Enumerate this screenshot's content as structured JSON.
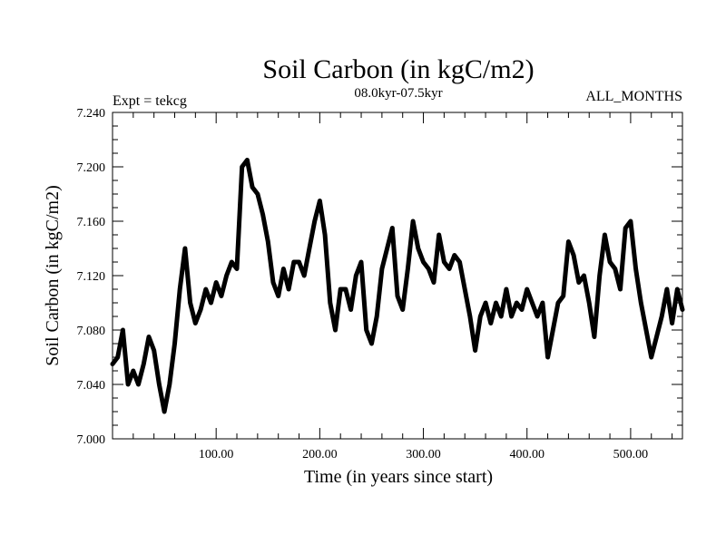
{
  "chart_data": {
    "type": "line",
    "title": "Soil Carbon (in kgC/m2)",
    "subtitle": "08.0kyr-07.5kyr",
    "left_label": "Expt = tekcg",
    "right_label": "ALL_MONTHS",
    "xlabel": "Time (in years since start)",
    "ylabel": "Soil Carbon (in kgC/m2)",
    "xlim": [
      0,
      550
    ],
    "ylim": [
      7.0,
      7.24
    ],
    "x_ticks": [
      100,
      200,
      300,
      400,
      500
    ],
    "x_tick_labels": [
      "100.00",
      "200.00",
      "300.00",
      "400.00",
      "500.00"
    ],
    "y_ticks": [
      7.0,
      7.04,
      7.08,
      7.12,
      7.16,
      7.2,
      7.24
    ],
    "y_tick_labels": [
      "7.000",
      "7.040",
      "7.080",
      "7.120",
      "7.160",
      "7.200",
      "7.240"
    ],
    "series": [
      {
        "name": "Soil Carbon",
        "color": "#000000",
        "x": [
          0,
          5,
          10,
          15,
          20,
          25,
          30,
          35,
          40,
          45,
          50,
          55,
          60,
          65,
          70,
          75,
          80,
          85,
          90,
          95,
          100,
          105,
          110,
          115,
          120,
          125,
          130,
          135,
          140,
          145,
          150,
          155,
          160,
          165,
          170,
          175,
          180,
          185,
          190,
          195,
          200,
          205,
          210,
          215,
          220,
          225,
          230,
          235,
          240,
          245,
          250,
          255,
          260,
          265,
          270,
          275,
          280,
          285,
          290,
          295,
          300,
          305,
          310,
          315,
          320,
          325,
          330,
          335,
          340,
          345,
          350,
          355,
          360,
          365,
          370,
          375,
          380,
          385,
          390,
          395,
          400,
          405,
          410,
          415,
          420,
          425,
          430,
          435,
          440,
          445,
          450,
          455,
          460,
          465,
          470,
          475,
          480,
          485,
          490,
          495,
          500,
          505,
          510,
          515,
          520,
          525,
          530,
          535,
          540,
          545,
          550
        ],
        "values": [
          7.055,
          7.06,
          7.08,
          7.04,
          7.05,
          7.04,
          7.055,
          7.075,
          7.065,
          7.04,
          7.02,
          7.04,
          7.07,
          7.11,
          7.14,
          7.1,
          7.085,
          7.095,
          7.11,
          7.1,
          7.115,
          7.105,
          7.12,
          7.13,
          7.125,
          7.2,
          7.205,
          7.185,
          7.18,
          7.165,
          7.145,
          7.115,
          7.105,
          7.125,
          7.11,
          7.13,
          7.13,
          7.12,
          7.14,
          7.16,
          7.175,
          7.15,
          7.1,
          7.08,
          7.11,
          7.11,
          7.095,
          7.12,
          7.13,
          7.08,
          7.07,
          7.09,
          7.125,
          7.14,
          7.155,
          7.105,
          7.095,
          7.125,
          7.16,
          7.14,
          7.13,
          7.125,
          7.115,
          7.15,
          7.13,
          7.125,
          7.135,
          7.13,
          7.11,
          7.09,
          7.065,
          7.09,
          7.1,
          7.085,
          7.1,
          7.09,
          7.11,
          7.09,
          7.1,
          7.095,
          7.11,
          7.1,
          7.09,
          7.1,
          7.06,
          7.08,
          7.1,
          7.105,
          7.145,
          7.135,
          7.115,
          7.12,
          7.1,
          7.075,
          7.12,
          7.15,
          7.13,
          7.125,
          7.11,
          7.155,
          7.16,
          7.125,
          7.1,
          7.08,
          7.06,
          7.075,
          7.09,
          7.11,
          7.085,
          7.11,
          7.095
        ]
      }
    ]
  }
}
